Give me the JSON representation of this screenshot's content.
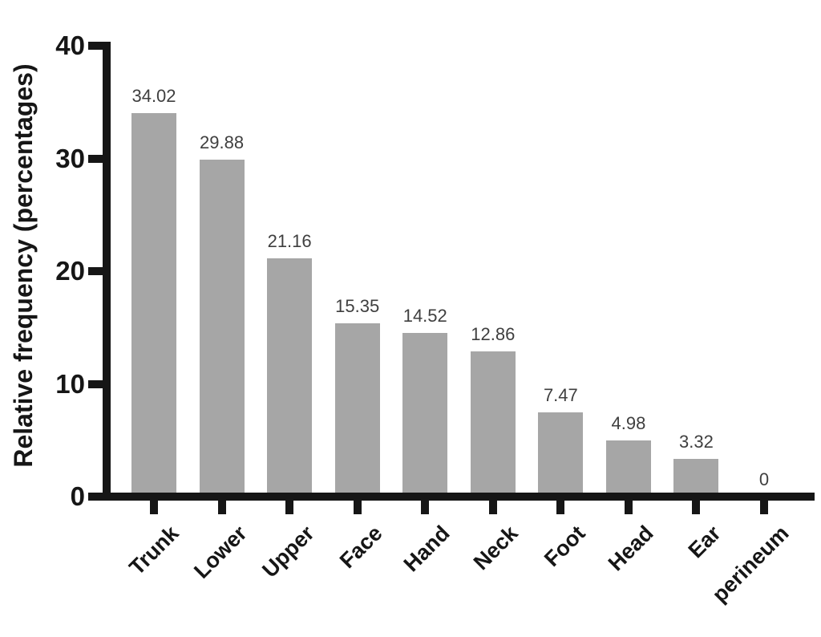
{
  "figure": {
    "background_color": "#ffffff"
  },
  "chart_data": {
    "type": "bar",
    "title": "",
    "xlabel": "",
    "ylabel": "Relative frequency (percentages)",
    "categories": [
      "Trunk",
      "Lower",
      "Upper",
      "Face",
      "Hand",
      "Neck",
      "Foot",
      "Head",
      "Ear",
      "perineum"
    ],
    "values": [
      34.02,
      29.88,
      21.16,
      15.35,
      14.52,
      12.86,
      7.47,
      4.98,
      3.32,
      0
    ],
    "value_labels": [
      "34.02",
      "29.88",
      "21.16",
      "15.35",
      "14.52",
      "12.86",
      "7.47",
      "4.98",
      "3.32",
      "0"
    ],
    "ylim": [
      0,
      40
    ],
    "yticks": [
      0,
      10,
      20,
      30,
      40
    ],
    "ytick_labels": [
      "0",
      "10",
      "20",
      "30",
      "40"
    ],
    "bar_color": "#a6a6a6",
    "axis_color": "#161616",
    "value_label_color": "#3f3f3f",
    "grid": false,
    "legend": null
  }
}
